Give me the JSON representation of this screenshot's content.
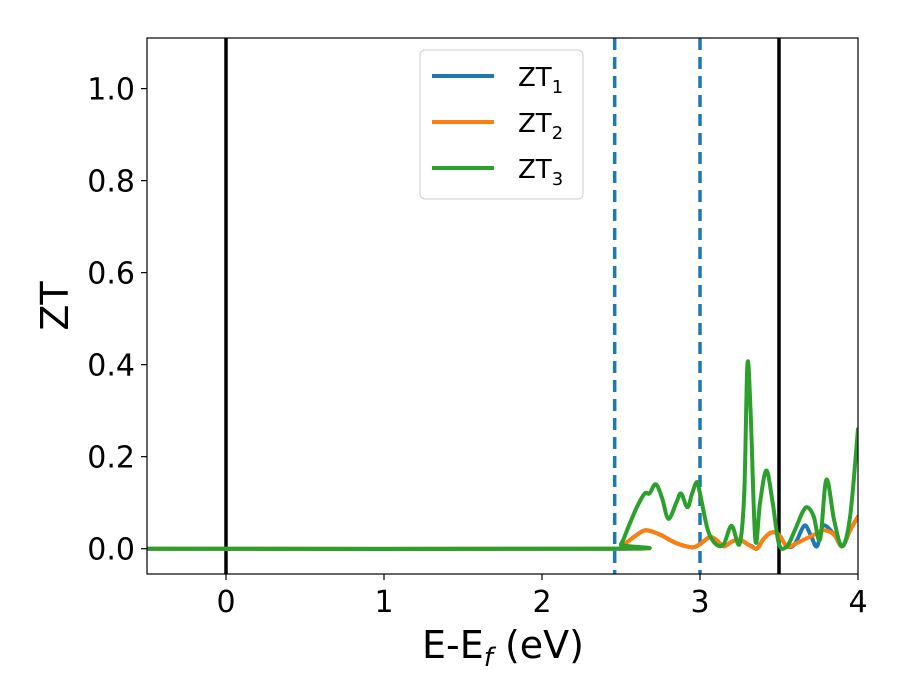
{
  "chart_data": {
    "type": "line",
    "xlabel": "E-E",
    "xlabel_sub": "f",
    "xlabel_unit": " (eV)",
    "ylabel": "ZT",
    "xlim": [
      -0.5,
      4.0
    ],
    "ylim": [
      -0.055,
      1.11
    ],
    "xticks": [
      0,
      1,
      2,
      3,
      4
    ],
    "yticks": [
      0.0,
      0.2,
      0.4,
      0.6,
      0.8,
      1.0
    ],
    "xtick_labels": [
      "0",
      "1",
      "2",
      "3",
      "4"
    ],
    "ytick_labels": [
      "0.0",
      "0.2",
      "0.4",
      "0.6",
      "0.8",
      "1.0"
    ],
    "grid": false,
    "legend_position": "upper center",
    "vertical_lines": [
      {
        "x": 0.0,
        "style": "solid",
        "color": "#000000"
      },
      {
        "x": 3.5,
        "style": "solid",
        "color": "#000000"
      },
      {
        "x": 2.46,
        "style": "dashed",
        "color": "#1f77b4"
      },
      {
        "x": 3.0,
        "style": "dashed",
        "color": "#1f77b4"
      }
    ],
    "series": [
      {
        "name": "ZT",
        "name_sub": "1",
        "color": "#1f77b4",
        "x": [
          -0.5,
          2.45,
          2.5,
          2.6,
          2.66,
          2.75,
          2.85,
          2.95,
          3.0,
          3.06,
          3.1,
          3.15,
          3.2,
          3.25,
          3.3,
          3.33,
          3.36,
          3.4,
          3.45,
          3.5,
          3.55,
          3.6,
          3.66,
          3.7,
          3.74,
          3.78,
          3.85,
          3.9,
          3.95,
          4.0
        ],
        "values": [
          0.0,
          0.0,
          0.005,
          0.03,
          0.04,
          0.03,
          0.012,
          0.003,
          0.01,
          0.025,
          0.02,
          0.005,
          0.015,
          0.02,
          0.01,
          0.005,
          0.0,
          0.02,
          0.035,
          0.03,
          0.005,
          0.01,
          0.05,
          0.03,
          0.005,
          0.05,
          0.03,
          0.005,
          0.04,
          0.07
        ]
      },
      {
        "name": "ZT",
        "name_sub": "2",
        "color": "#ff7f0e",
        "x": [
          -0.5,
          2.45,
          2.5,
          2.6,
          2.66,
          2.75,
          2.85,
          2.95,
          3.0,
          3.06,
          3.1,
          3.15,
          3.2,
          3.25,
          3.3,
          3.36,
          3.4,
          3.45,
          3.5,
          3.55,
          3.6,
          3.66,
          3.72,
          3.78,
          3.85,
          3.9,
          3.95,
          4.0
        ],
        "values": [
          0.0,
          0.0,
          0.005,
          0.03,
          0.04,
          0.03,
          0.012,
          0.003,
          0.01,
          0.025,
          0.02,
          0.005,
          0.015,
          0.02,
          0.01,
          0.0,
          0.02,
          0.035,
          0.03,
          0.005,
          0.01,
          0.02,
          0.03,
          0.04,
          0.03,
          0.005,
          0.04,
          0.07
        ]
      },
      {
        "name": "ZT",
        "name_sub": "3",
        "color": "#2ca02c",
        "x": [
          -0.5,
          2.45,
          2.5,
          2.55,
          2.6,
          2.65,
          2.68,
          2.72,
          2.76,
          2.8,
          2.85,
          2.88,
          2.92,
          2.95,
          2.98,
          3.0,
          3.05,
          3.1,
          3.15,
          3.2,
          3.25,
          3.28,
          3.3,
          3.32,
          3.35,
          3.38,
          3.42,
          3.46,
          3.5,
          3.55,
          3.6,
          3.65,
          3.68,
          3.72,
          3.76,
          3.8,
          3.85,
          3.9,
          3.95,
          4.0
        ],
        "values": [
          0.0,
          0.0,
          0.01,
          0.05,
          0.09,
          0.12,
          0.12,
          0.14,
          0.11,
          0.065,
          0.1,
          0.12,
          0.09,
          0.12,
          0.145,
          0.12,
          0.04,
          0.01,
          0.01,
          0.05,
          0.01,
          0.12,
          0.4,
          0.3,
          0.02,
          0.1,
          0.17,
          0.1,
          0.01,
          0.005,
          0.04,
          0.08,
          0.09,
          0.07,
          0.02,
          0.15,
          0.06,
          0.005,
          0.07,
          0.26
        ]
      }
    ]
  }
}
